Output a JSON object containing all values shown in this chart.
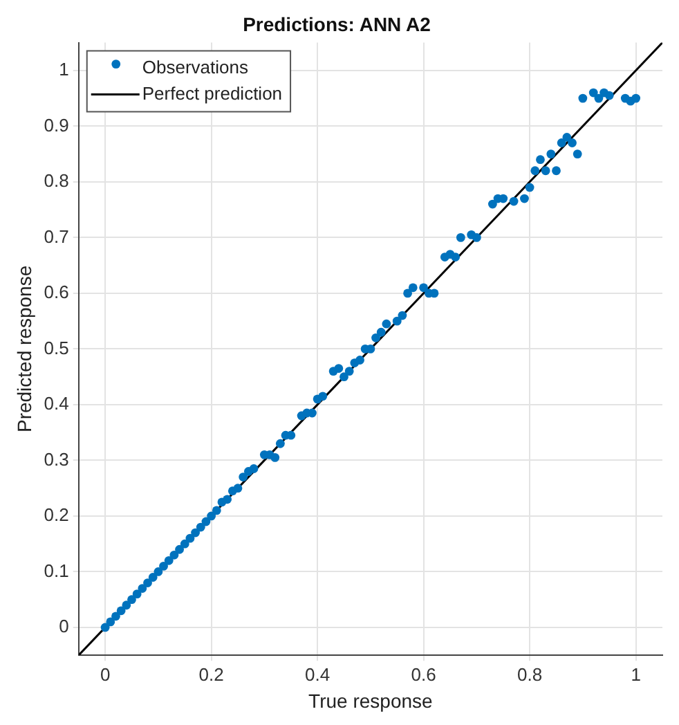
{
  "chart_data": {
    "type": "scatter",
    "title": "Predictions: ANN A2",
    "xlabel": "True response",
    "ylabel": "Predicted response",
    "xlim": [
      -0.05,
      1.05
    ],
    "ylim": [
      -0.05,
      1.05
    ],
    "xticks": [
      0,
      0.2,
      0.4,
      0.6,
      0.8,
      1
    ],
    "yticks": [
      0,
      0.1,
      0.2,
      0.3,
      0.4,
      0.5,
      0.6,
      0.7,
      0.8,
      0.9,
      1
    ],
    "grid": true,
    "legend": "top left",
    "marker": "circle",
    "series": [
      {
        "name": "Observations",
        "type": "scatter",
        "color": "#0072bd",
        "x": [
          0,
          0.01,
          0.02,
          0.03,
          0.04,
          0.05,
          0.06,
          0.07,
          0.08,
          0.09,
          0.1,
          0.11,
          0.12,
          0.13,
          0.14,
          0.15,
          0.16,
          0.17,
          0.18,
          0.19,
          0.2,
          0.21,
          0.22,
          0.23,
          0.24,
          0.25,
          0.26,
          0.27,
          0.28,
          0.3,
          0.31,
          0.32,
          0.33,
          0.34,
          0.35,
          0.37,
          0.38,
          0.39,
          0.4,
          0.41,
          0.43,
          0.44,
          0.45,
          0.46,
          0.47,
          0.48,
          0.49,
          0.5,
          0.51,
          0.52,
          0.53,
          0.55,
          0.56,
          0.57,
          0.58,
          0.6,
          0.61,
          0.62,
          0.64,
          0.65,
          0.66,
          0.67,
          0.69,
          0.7,
          0.73,
          0.74,
          0.75,
          0.77,
          0.79,
          0.8,
          0.81,
          0.82,
          0.83,
          0.84,
          0.85,
          0.86,
          0.87,
          0.88,
          0.89,
          0.9,
          0.92,
          0.93,
          0.94,
          0.95,
          0.98,
          0.99,
          1
        ],
        "values": [
          0,
          0.01,
          0.02,
          0.03,
          0.04,
          0.05,
          0.06,
          0.07,
          0.08,
          0.09,
          0.1,
          0.11,
          0.12,
          0.13,
          0.14,
          0.15,
          0.16,
          0.17,
          0.18,
          0.19,
          0.2,
          0.21,
          0.225,
          0.23,
          0.245,
          0.25,
          0.27,
          0.28,
          0.285,
          0.31,
          0.31,
          0.305,
          0.33,
          0.345,
          0.345,
          0.38,
          0.385,
          0.385,
          0.41,
          0.415,
          0.46,
          0.465,
          0.45,
          0.46,
          0.475,
          0.48,
          0.5,
          0.5,
          0.52,
          0.53,
          0.545,
          0.55,
          0.56,
          0.6,
          0.61,
          0.61,
          0.6,
          0.6,
          0.665,
          0.67,
          0.665,
          0.7,
          0.705,
          0.7,
          0.76,
          0.77,
          0.77,
          0.765,
          0.77,
          0.79,
          0.82,
          0.84,
          0.82,
          0.85,
          0.82,
          0.87,
          0.88,
          0.87,
          0.85,
          0.95,
          0.96,
          0.95,
          0.96,
          0.955,
          0.95,
          0.945,
          0.95
        ]
      },
      {
        "name": "Perfect prediction",
        "type": "line",
        "color": "#000000",
        "marker": "none",
        "line_style": "solid",
        "x": [
          -0.05,
          1.05
        ],
        "values": [
          -0.05,
          1.05
        ]
      }
    ]
  }
}
